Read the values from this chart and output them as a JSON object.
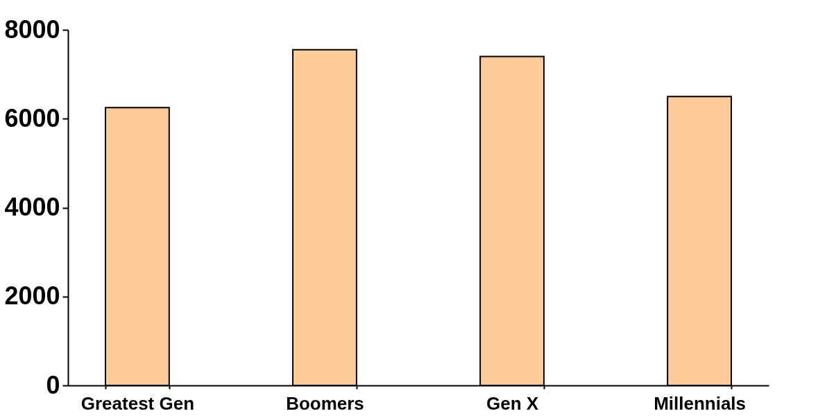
{
  "chart_data": {
    "type": "bar",
    "categories": [
      "Greatest Gen",
      "Boomers",
      "Gen X",
      "Millennials"
    ],
    "values": [
      6250,
      7550,
      7400,
      6500
    ],
    "color": "#ffcc99",
    "ylim": [
      0,
      8000
    ],
    "yticks": [
      0,
      2000,
      4000,
      6000,
      8000
    ],
    "grid": false
  }
}
